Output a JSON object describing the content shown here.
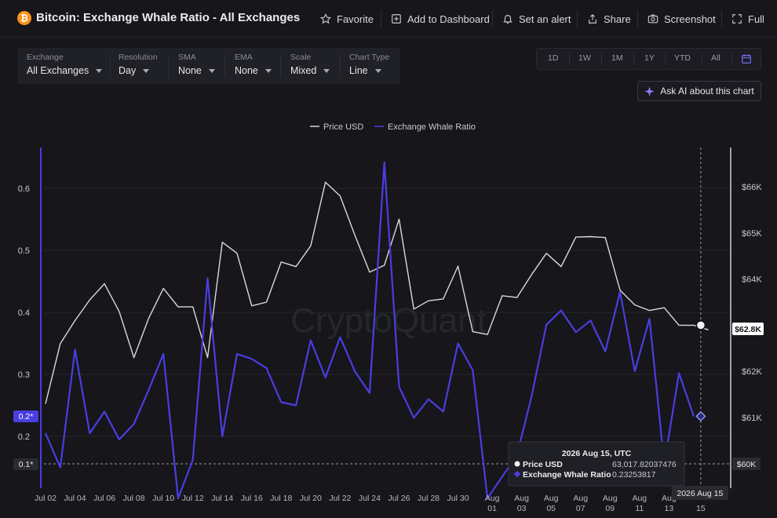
{
  "header": {
    "logo_glyph": "₿",
    "title": "Bitcoin: Exchange Whale Ratio - All Exchanges",
    "actions": [
      {
        "label": "Favorite",
        "icon": "star-icon"
      },
      {
        "label": "Add to Dashboard",
        "icon": "dashboard-add-icon"
      },
      {
        "label": "Set an alert",
        "icon": "bell-icon"
      },
      {
        "label": "Share",
        "icon": "share-icon"
      },
      {
        "label": "Screenshot",
        "icon": "camera-icon"
      },
      {
        "label": "Full",
        "icon": "fullscreen-icon"
      }
    ]
  },
  "controls": [
    {
      "label": "Exchange",
      "value": "All Exchanges"
    },
    {
      "label": "Resolution",
      "value": "Day"
    },
    {
      "label": "SMA",
      "value": "None"
    },
    {
      "label": "EMA",
      "value": "None"
    },
    {
      "label": "Scale",
      "value": "Mixed"
    },
    {
      "label": "Chart Type",
      "value": "Line"
    }
  ],
  "ranges": [
    "1D",
    "1W",
    "1M",
    "1Y",
    "YTD",
    "All"
  ],
  "ask_ai": {
    "label": "Ask AI about this chart",
    "icon": "sparkle-icon"
  },
  "colors": {
    "price": "#d9d9de",
    "ratio": "#4a3ee0",
    "background": "#16161b",
    "grid": "#26262d",
    "ratio_badge": "#4a3ee0"
  },
  "chart_data": {
    "type": "line",
    "watermark": "CryptoQuant",
    "legend_position": "top-center",
    "grid": true,
    "series": [
      {
        "name": "Price USD",
        "axis": "right",
        "values": [
          61300,
          62600,
          63100,
          63550,
          63900,
          63300,
          62300,
          63150,
          63800,
          63400,
          63400,
          62300,
          64800,
          64560,
          63420,
          63500,
          64370,
          64270,
          64720,
          66100,
          65800,
          64950,
          64150,
          64300,
          65300,
          63350,
          63530,
          63570,
          64280,
          62860,
          62800,
          63640,
          63600,
          64100,
          64560,
          64270,
          64910,
          64920,
          64900,
          63760,
          63440,
          63320,
          63380,
          63000,
          63000,
          62900
        ]
      },
      {
        "name": "Exchange Whale Ratio",
        "axis": "left",
        "values": [
          0.205,
          0.15,
          0.34,
          0.205,
          0.24,
          0.195,
          0.22,
          0.275,
          0.333,
          0.1,
          0.162,
          0.455,
          0.2,
          0.333,
          0.325,
          0.31,
          0.255,
          0.25,
          0.355,
          0.295,
          0.36,
          0.305,
          0.27,
          0.642,
          0.28,
          0.23,
          0.26,
          0.24,
          0.35,
          0.307,
          0.1,
          0.135,
          0.17,
          0.265,
          0.38,
          0.403,
          0.368,
          0.387,
          0.337,
          0.433,
          0.305,
          0.39,
          0.155,
          0.302,
          0.2325
        ]
      }
    ],
    "x_ticks": [
      {
        "index": 0,
        "label": "Jul 02"
      },
      {
        "index": 2,
        "label": "Jul 04"
      },
      {
        "index": 4,
        "label": "Jul 06"
      },
      {
        "index": 6,
        "label": "Jul 08"
      },
      {
        "index": 8,
        "label": "Jul 10"
      },
      {
        "index": 10,
        "label": "Jul 12"
      },
      {
        "index": 12,
        "label": "Jul 14"
      },
      {
        "index": 14,
        "label": "Jul 16"
      },
      {
        "index": 16,
        "label": "Jul 18"
      },
      {
        "index": 18,
        "label": "Jul 20"
      },
      {
        "index": 20,
        "label": "Jul 22"
      },
      {
        "index": 22,
        "label": "Jul 24"
      },
      {
        "index": 24,
        "label": "Jul 26"
      },
      {
        "index": 26,
        "label": "Jul 28"
      },
      {
        "index": 28,
        "label": "Jul 30"
      },
      {
        "index": 30,
        "label": "Aug\n01"
      },
      {
        "index": 32,
        "label": "Aug\n03"
      },
      {
        "index": 34,
        "label": "Aug\n05"
      },
      {
        "index": 36,
        "label": "Aug\n07"
      },
      {
        "index": 38,
        "label": "Aug\n09"
      },
      {
        "index": 40,
        "label": "Aug\n11"
      },
      {
        "index": 42,
        "label": "Aug\n13"
      },
      {
        "index": 44,
        "label": "15"
      }
    ],
    "left_axis": {
      "ticks": [
        0.2,
        0.3,
        0.4,
        0.5,
        0.6
      ],
      "ylim": [
        0.15,
        0.65
      ]
    },
    "right_axis": {
      "ticks": [
        "$61K",
        "$62K",
        "$63K",
        "$64K",
        "$65K",
        "$66K"
      ],
      "tick_values": [
        61000,
        62000,
        63000,
        64000,
        65000,
        66000
      ],
      "ylim": [
        59800,
        66700
      ]
    },
    "left_badges": [
      {
        "label": "0.2*",
        "value": 0.2
      },
      {
        "label": "0.1*",
        "value": 0.1
      }
    ],
    "right_badges": [
      {
        "label": "$62.8K",
        "value": 62800
      },
      {
        "label": "$60K",
        "value": 60000
      }
    ],
    "crosshair": {
      "index": 44,
      "date": "2026 Aug 15",
      "tooltip_title": "2026 Aug 15, UTC",
      "rows": [
        {
          "label": "Price USD",
          "value": "63,017.82037476"
        },
        {
          "label": "Exchange Whale Ratio",
          "value": "0.23253817"
        }
      ]
    }
  }
}
